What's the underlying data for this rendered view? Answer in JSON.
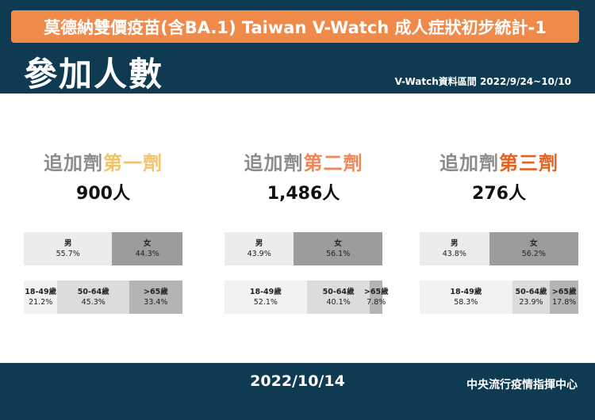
{
  "header": {
    "banner_title": "莫德納雙價疫苗(含BA.1) Taiwan V-Watch 成人症狀初步統計-1",
    "page_title": "參加人數",
    "date_range": "V-Watch資料區間 2022/9/24~10/10"
  },
  "panels": [
    {
      "prefix": "追加劑",
      "dose": "第一劑",
      "dose_color": "#f2c36b",
      "count": "900人",
      "gender": [
        {
          "label": "男",
          "value": "55.7%",
          "fraction": 0.557,
          "color": "#ececec"
        },
        {
          "label": "女",
          "value": "44.3%",
          "fraction": 0.443,
          "color": "#9c9c9c"
        }
      ],
      "age": [
        {
          "label": "18-49歲",
          "value": "21.2%",
          "fraction": 0.212,
          "color": "#f2f2f2"
        },
        {
          "label": "50-64歲",
          "value": "45.3%",
          "fraction": 0.453,
          "color": "#dcdcdc"
        },
        {
          "label": ">65歲",
          "value": "33.4%",
          "fraction": 0.334,
          "color": "#b4b4b4"
        }
      ]
    },
    {
      "prefix": "追加劑",
      "dose": "第二劑",
      "dose_color": "#f0875a",
      "count": "1,486人",
      "gender": [
        {
          "label": "男",
          "value": "43.9%",
          "fraction": 0.439,
          "color": "#ececec"
        },
        {
          "label": "女",
          "value": "56.1%",
          "fraction": 0.561,
          "color": "#9c9c9c"
        }
      ],
      "age": [
        {
          "label": "18-49歲",
          "value": "52.1%",
          "fraction": 0.521,
          "color": "#f2f2f2"
        },
        {
          "label": "50-64歲",
          "value": "40.1%",
          "fraction": 0.401,
          "color": "#dcdcdc"
        },
        {
          "label": ">65歲",
          "value": "7.8%",
          "fraction": 0.078,
          "color": "#b4b4b4"
        }
      ]
    },
    {
      "prefix": "追加劑",
      "dose": "第三劑",
      "dose_color": "#e4621e",
      "count": "276人",
      "gender": [
        {
          "label": "男",
          "value": "43.8%",
          "fraction": 0.438,
          "color": "#ececec"
        },
        {
          "label": "女",
          "value": "56.2%",
          "fraction": 0.562,
          "color": "#9c9c9c"
        }
      ],
      "age": [
        {
          "label": "18-49歲",
          "value": "58.3%",
          "fraction": 0.583,
          "color": "#f2f2f2"
        },
        {
          "label": "50-64歲",
          "value": "23.9%",
          "fraction": 0.239,
          "color": "#dcdcdc"
        },
        {
          "label": ">65歲",
          "value": "17.8%",
          "fraction": 0.178,
          "color": "#b4b4b4"
        }
      ]
    }
  ],
  "footer": {
    "date": "2022/10/14",
    "org": "中央流行疫情指揮中心"
  }
}
